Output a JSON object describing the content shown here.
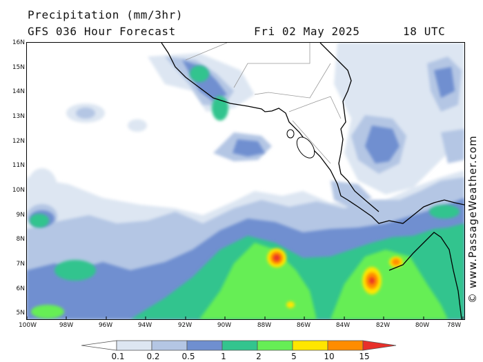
{
  "header": {
    "title": "Precipitation (mm/3hr)",
    "model": "GFS 036 Hour Forecast",
    "date": "Fri 02 May 2025",
    "time": "18 UTC"
  },
  "map": {
    "lat_labels": [
      "16N",
      "15N",
      "14N",
      "13N",
      "12N",
      "11N",
      "10N",
      "9N",
      "8N",
      "7N",
      "6N",
      "5N"
    ],
    "lon_labels": [
      "100W",
      "98W",
      "96W",
      "94W",
      "92W",
      "90W",
      "88W",
      "86W",
      "84W",
      "82W",
      "80W",
      "78W"
    ],
    "credit": "© www.PassageWeather.com",
    "features": {
      "coastline": "Central America coastline (Mexico to Panama)",
      "lakes": [
        "Lake Nicaragua",
        "Lake Managua"
      ],
      "precip_maxima": [
        {
          "lon": -87.0,
          "lat": 6.6,
          "level": "10-15"
        },
        {
          "lon": -82.2,
          "lat": 6.2,
          "level": "10-15"
        },
        {
          "lon": -81.0,
          "lat": 7.1,
          "level": "5-10"
        }
      ]
    }
  },
  "legend": {
    "labels": [
      "0.1",
      "0.2",
      "0.5",
      "1",
      "2",
      "5",
      "10",
      "15"
    ],
    "colors": [
      "#ffffff",
      "#dde6f2",
      "#b4c6e4",
      "#6f8fd0",
      "#33c48e",
      "#66ee55",
      "#ffe600",
      "#ff8c00",
      "#e8302a"
    ]
  }
}
